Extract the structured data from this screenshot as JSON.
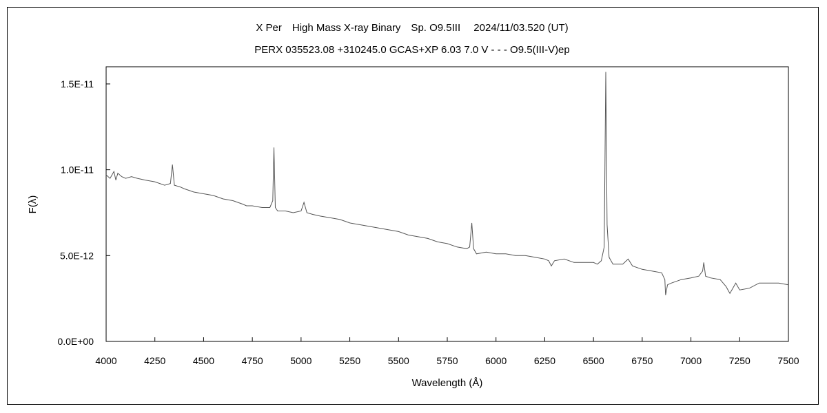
{
  "chart_data": {
    "type": "line",
    "title": "X Per　High Mass X-ray Binary　Sp. O9.5III　 2024/11/03.520 (UT)",
    "subtitle": "PERX 035523.08 +310245.0 GCAS+XP 6.03 7.0 V - - - O9.5(III-V)ep",
    "xlabel": "Wavelength (Å)",
    "ylabel": "F(λ)",
    "xlim": [
      4000,
      7500
    ],
    "ylim": [
      0,
      1.6e-11
    ],
    "x_ticks": [
      4000,
      4250,
      4500,
      4750,
      5000,
      5250,
      5500,
      5750,
      6000,
      6250,
      6500,
      6750,
      7000,
      7250,
      7500
    ],
    "x_tick_labels": [
      "4000",
      "4250",
      "4500",
      "4750",
      "5000",
      "5250",
      "5500",
      "5750",
      "6000",
      "6250",
      "6500",
      "6750",
      "7000",
      "7250",
      "7500"
    ],
    "y_ticks": [
      0,
      5e-12,
      1e-11,
      1.5e-11
    ],
    "y_tick_labels": [
      "0.0E+00",
      "5.0E-12",
      "1.0E-11",
      "1.5E-11"
    ],
    "grid": false,
    "legend": "none",
    "line_color": "#555555",
    "series": [
      {
        "x": [
          4000,
          4020,
          4040,
          4050,
          4060,
          4080,
          4100,
          4130,
          4160,
          4200,
          4250,
          4300,
          4330,
          4340,
          4350,
          4380,
          4400,
          4450,
          4500,
          4550,
          4600,
          4650,
          4700,
          4720,
          4750,
          4800,
          4840,
          4855,
          4861,
          4868,
          4880,
          4920,
          4960,
          5000,
          5015,
          5030,
          5060,
          5100,
          5150,
          5200,
          5250,
          5300,
          5350,
          5400,
          5450,
          5500,
          5550,
          5600,
          5650,
          5700,
          5750,
          5800,
          5850,
          5865,
          5876,
          5885,
          5900,
          5950,
          6000,
          6050,
          6100,
          6150,
          6200,
          6250,
          6270,
          6284,
          6300,
          6350,
          6400,
          6450,
          6500,
          6520,
          6540,
          6555,
          6563,
          6570,
          6580,
          6600,
          6650,
          6678,
          6700,
          6750,
          6800,
          6850,
          6866,
          6870,
          6880,
          6900,
          6950,
          7000,
          7040,
          7060,
          7066,
          7075,
          7100,
          7150,
          7180,
          7200,
          7230,
          7250,
          7300,
          7350,
          7400,
          7450,
          7500
        ],
        "y": [
          9.7e-12,
          9.5e-12,
          9.9e-12,
          9.4e-12,
          9.8e-12,
          9.6e-12,
          9.5e-12,
          9.6e-12,
          9.5e-12,
          9.4e-12,
          9.3e-12,
          9.1e-12,
          9.2e-12,
          1.03e-11,
          9.1e-12,
          9e-12,
          8.9e-12,
          8.7e-12,
          8.6e-12,
          8.5e-12,
          8.3e-12,
          8.2e-12,
          8e-12,
          7.9e-12,
          7.9e-12,
          7.8e-12,
          7.8e-12,
          8.2e-12,
          1.13e-11,
          7.8e-12,
          7.6e-12,
          7.6e-12,
          7.5e-12,
          7.6e-12,
          8.1e-12,
          7.5e-12,
          7.4e-12,
          7.3e-12,
          7.2e-12,
          7.1e-12,
          6.9e-12,
          6.8e-12,
          6.7e-12,
          6.6e-12,
          6.5e-12,
          6.4e-12,
          6.2e-12,
          6.1e-12,
          6e-12,
          5.8e-12,
          5.7e-12,
          5.5e-12,
          5.4e-12,
          5.5e-12,
          6.9e-12,
          5.4e-12,
          5.1e-12,
          5.2e-12,
          5.1e-12,
          5.1e-12,
          5e-12,
          5e-12,
          4.9e-12,
          4.8e-12,
          4.7e-12,
          4.4e-12,
          4.7e-12,
          4.8e-12,
          4.6e-12,
          4.6e-12,
          4.6e-12,
          4.5e-12,
          4.7e-12,
          5.5e-12,
          1.57e-11,
          6.8e-12,
          4.9e-12,
          4.5e-12,
          4.5e-12,
          4.8e-12,
          4.4e-12,
          4.2e-12,
          4.1e-12,
          4e-12,
          3.6e-12,
          2.7e-12,
          3.3e-12,
          3.4e-12,
          3.6e-12,
          3.7e-12,
          3.8e-12,
          4.1e-12,
          4.6e-12,
          3.8e-12,
          3.7e-12,
          3.6e-12,
          3.2e-12,
          2.8e-12,
          3.4e-12,
          3e-12,
          3.1e-12,
          3.4e-12,
          3.4e-12,
          3.4e-12,
          3.3e-12
        ]
      }
    ]
  }
}
